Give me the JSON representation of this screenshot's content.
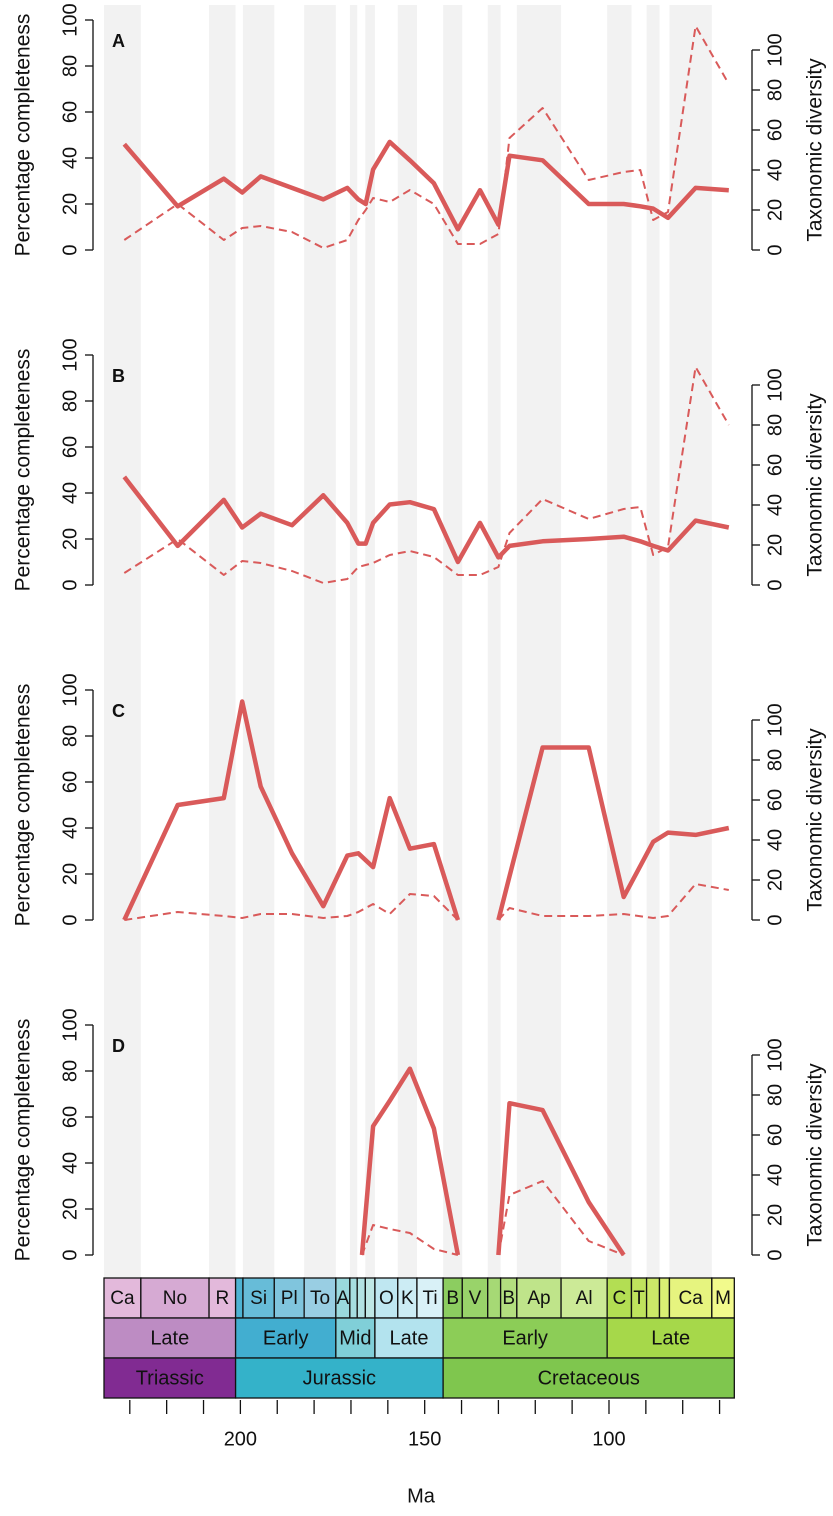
{
  "chart_data": [
    {
      "type": "line",
      "panel_label": "A",
      "ylabel": "Percentage completeness",
      "y2label": "Taxonomic diversity",
      "xlim": [
        237,
        65
      ],
      "ylim": [
        0,
        100
      ],
      "yticks": [
        0,
        20,
        40,
        60,
        80,
        100
      ],
      "y2lim": [
        0,
        115
      ],
      "y2ticks": [
        0,
        20,
        40,
        60,
        80,
        100
      ],
      "x": [
        231.5,
        217,
        204.5,
        199.5,
        194.5,
        186,
        177.5,
        171,
        168,
        166,
        164,
        159.5,
        154,
        147.5,
        141,
        135,
        130,
        127,
        118,
        105.5,
        96,
        91.5,
        88,
        84,
        76.5,
        67.5
      ],
      "series": [
        {
          "color": "#d95a5a",
          "style": "solid",
          "values": [
            46,
            19,
            31,
            25,
            32,
            27,
            22,
            27,
            22,
            20,
            35,
            47,
            39,
            29,
            9,
            26,
            11,
            41,
            39,
            20,
            20,
            19,
            18,
            14,
            27,
            26
          ]
        },
        {
          "color": "#d95a5a",
          "style": "dashed",
          "axis": "y2",
          "values": [
            5,
            23,
            5,
            11,
            12,
            9,
            1,
            5,
            15,
            20,
            26,
            24,
            30,
            23,
            3,
            3,
            8,
            56,
            71,
            35,
            39,
            40,
            15,
            19,
            112,
            83
          ]
        }
      ]
    },
    {
      "type": "line",
      "panel_label": "B",
      "ylabel": "Percentage completeness",
      "y2label": "Taxonomic diversity",
      "xlim": [
        237,
        65
      ],
      "ylim": [
        0,
        100
      ],
      "yticks": [
        0,
        20,
        40,
        60,
        80,
        100
      ],
      "y2lim": [
        0,
        115
      ],
      "y2ticks": [
        0,
        20,
        40,
        60,
        80,
        100
      ],
      "x": [
        231.5,
        217,
        204.5,
        199.5,
        194.5,
        186,
        177.5,
        171,
        168,
        166,
        164,
        159.5,
        154,
        147.5,
        141,
        135,
        130,
        127,
        118,
        105.5,
        96,
        91.5,
        88,
        84,
        76.5,
        67.5
      ],
      "series": [
        {
          "color": "#d95a5a",
          "style": "solid",
          "values": [
            47,
            17,
            37,
            25,
            31,
            26,
            39,
            27,
            18,
            18,
            27,
            35,
            36,
            33,
            10,
            27,
            12,
            17,
            19,
            20,
            21,
            19,
            17,
            15,
            28,
            25
          ]
        },
        {
          "color": "#d95a5a",
          "style": "dashed",
          "axis": "y2",
          "values": [
            6,
            23,
            5,
            12,
            11,
            7,
            1,
            3,
            9,
            10,
            11,
            15,
            17,
            14,
            5,
            5,
            9,
            26,
            43,
            33,
            38,
            39,
            15,
            19,
            109,
            80
          ]
        }
      ]
    },
    {
      "type": "line",
      "panel_label": "C",
      "ylabel": "Percentage completeness",
      "y2label": "Taxonomic diversity",
      "xlim": [
        237,
        65
      ],
      "ylim": [
        0,
        100
      ],
      "yticks": [
        0,
        20,
        40,
        60,
        80,
        100
      ],
      "y2lim": [
        0,
        115
      ],
      "y2ticks": [
        0,
        20,
        40,
        60,
        80,
        100
      ],
      "x": [
        231.5,
        217,
        204.5,
        199.5,
        194.5,
        186,
        177.5,
        171,
        168,
        164,
        159.5,
        154,
        147.5,
        141,
        135,
        130,
        127,
        118,
        105.5,
        96,
        88,
        84,
        76.5,
        67.5
      ],
      "series": [
        {
          "color": "#d95a5a",
          "style": "solid",
          "values": [
            0,
            50,
            53,
            95,
            58,
            29,
            6,
            28,
            29,
            23,
            53,
            31,
            33,
            0,
            null,
            0,
            19,
            75,
            75,
            10,
            34,
            38,
            37,
            40
          ]
        },
        {
          "color": "#d95a5a",
          "style": "dashed",
          "axis": "y2",
          "values": [
            0,
            4,
            2,
            1,
            3,
            3,
            1,
            2,
            4,
            8,
            3,
            13,
            12,
            0,
            null,
            0,
            6,
            2,
            2,
            3,
            1,
            2,
            18,
            15
          ]
        }
      ]
    },
    {
      "type": "line",
      "panel_label": "D",
      "ylabel": "Percentage completeness",
      "y2label": "Taxonomic diversity",
      "xlim": [
        237,
        65
      ],
      "ylim": [
        0,
        100
      ],
      "yticks": [
        0,
        20,
        40,
        60,
        80,
        100
      ],
      "y2lim": [
        0,
        115
      ],
      "y2ticks": [
        0,
        20,
        40,
        60,
        80,
        100
      ],
      "x": [
        167,
        164,
        159.5,
        154,
        147.5,
        141,
        135,
        130,
        127,
        118,
        105.5,
        96
      ],
      "series": [
        {
          "color": "#d95a5a",
          "style": "solid",
          "values": [
            0,
            56,
            67,
            81,
            55,
            0,
            null,
            0,
            66,
            63,
            23,
            0
          ]
        },
        {
          "color": "#d95a5a",
          "style": "dashed",
          "axis": "y2",
          "values": [
            0,
            15,
            13,
            11,
            3,
            0,
            null,
            0,
            30,
            37,
            7,
            0
          ]
        }
      ],
      "xlabel": "Ma",
      "xticks": [
        200,
        150,
        100
      ],
      "xminorticks": [
        230,
        220,
        210,
        190,
        180,
        170,
        160,
        140,
        130,
        120,
        110,
        90,
        80,
        70
      ],
      "timescale": [
        [
          {
            "label": "Ca",
            "start": 237,
            "end": 227,
            "color": "#e3b9db"
          },
          {
            "label": "No",
            "start": 227,
            "end": 208.5,
            "color": "#d6aad3"
          },
          {
            "label": "R",
            "start": 208.5,
            "end": 201.3,
            "color": "#e3b9db"
          },
          {
            "label": null,
            "start": 201.3,
            "end": 199.3,
            "color": "#4eb3d3"
          },
          {
            "label": "Si",
            "start": 199.3,
            "end": 190.8,
            "color": "#67bcd8"
          },
          {
            "label": "Pl",
            "start": 190.8,
            "end": 182.7,
            "color": "#80c5dd"
          },
          {
            "label": "To",
            "start": 182.7,
            "end": 174.1,
            "color": "#99cee3"
          },
          {
            "label": "A",
            "start": 174.1,
            "end": 170.3,
            "color": "#9ad9dd"
          },
          {
            "label": null,
            "start": 170.3,
            "end": 168.3,
            "color": "#a6dde0"
          },
          {
            "label": null,
            "start": 168.3,
            "end": 166.1,
            "color": "#b3e2e3"
          },
          {
            "label": null,
            "start": 166.1,
            "end": 163.5,
            "color": "#bfe7e5"
          },
          {
            "label": "O",
            "start": 163.5,
            "end": 157.3,
            "color": "#bfe7f1"
          },
          {
            "label": "K",
            "start": 157.3,
            "end": 152.1,
            "color": "#ccecf4"
          },
          {
            "label": "Ti",
            "start": 152.1,
            "end": 145,
            "color": "#d9f1f7"
          },
          {
            "label": "B",
            "start": 145,
            "end": 139.8,
            "color": "#8ccd60"
          },
          {
            "label": "V",
            "start": 139.8,
            "end": 132.9,
            "color": "#99d36a"
          },
          {
            "label": null,
            "start": 132.9,
            "end": 129.4,
            "color": "#a6d975"
          },
          {
            "label": "B",
            "start": 129.4,
            "end": 125,
            "color": "#b3df7f"
          },
          {
            "label": "Ap",
            "start": 125,
            "end": 113,
            "color": "#bfe48a"
          },
          {
            "label": "Al",
            "start": 113,
            "end": 100.5,
            "color": "#ccea97"
          },
          {
            "label": "C",
            "start": 100.5,
            "end": 93.9,
            "color": "#b3de53"
          },
          {
            "label": "T",
            "start": 93.9,
            "end": 89.8,
            "color": "#bfe35d"
          },
          {
            "label": null,
            "start": 89.8,
            "end": 86.3,
            "color": "#cce968"
          },
          {
            "label": null,
            "start": 86.3,
            "end": 83.6,
            "color": "#d9ef74"
          },
          {
            "label": "Ca",
            "start": 83.6,
            "end": 72.1,
            "color": "#e6f47f"
          },
          {
            "label": "M",
            "start": 72.1,
            "end": 66,
            "color": "#f2fa8c"
          }
        ],
        [
          {
            "label": "Late",
            "start": 237,
            "end": 201.3,
            "color": "#bd8cc3"
          },
          {
            "label": "Early",
            "start": 201.3,
            "end": 174.1,
            "color": "#42aed0"
          },
          {
            "label": "Mid",
            "start": 174.1,
            "end": 163.5,
            "color": "#80cfd8"
          },
          {
            "label": "Late",
            "start": 163.5,
            "end": 145,
            "color": "#b3e3ee"
          },
          {
            "label": "Early",
            "start": 145,
            "end": 100.5,
            "color": "#8ccd57"
          },
          {
            "label": "Late",
            "start": 100.5,
            "end": 66,
            "color": "#a6d84a"
          }
        ],
        [
          {
            "label": "Triassic",
            "start": 237,
            "end": 201.3,
            "color": "#812b92"
          },
          {
            "label": "Jurassic",
            "start": 201.3,
            "end": 145,
            "color": "#34b2c9"
          },
          {
            "label": "Cretaceous",
            "start": 145,
            "end": 66,
            "color": "#7fc64e"
          }
        ]
      ]
    }
  ]
}
